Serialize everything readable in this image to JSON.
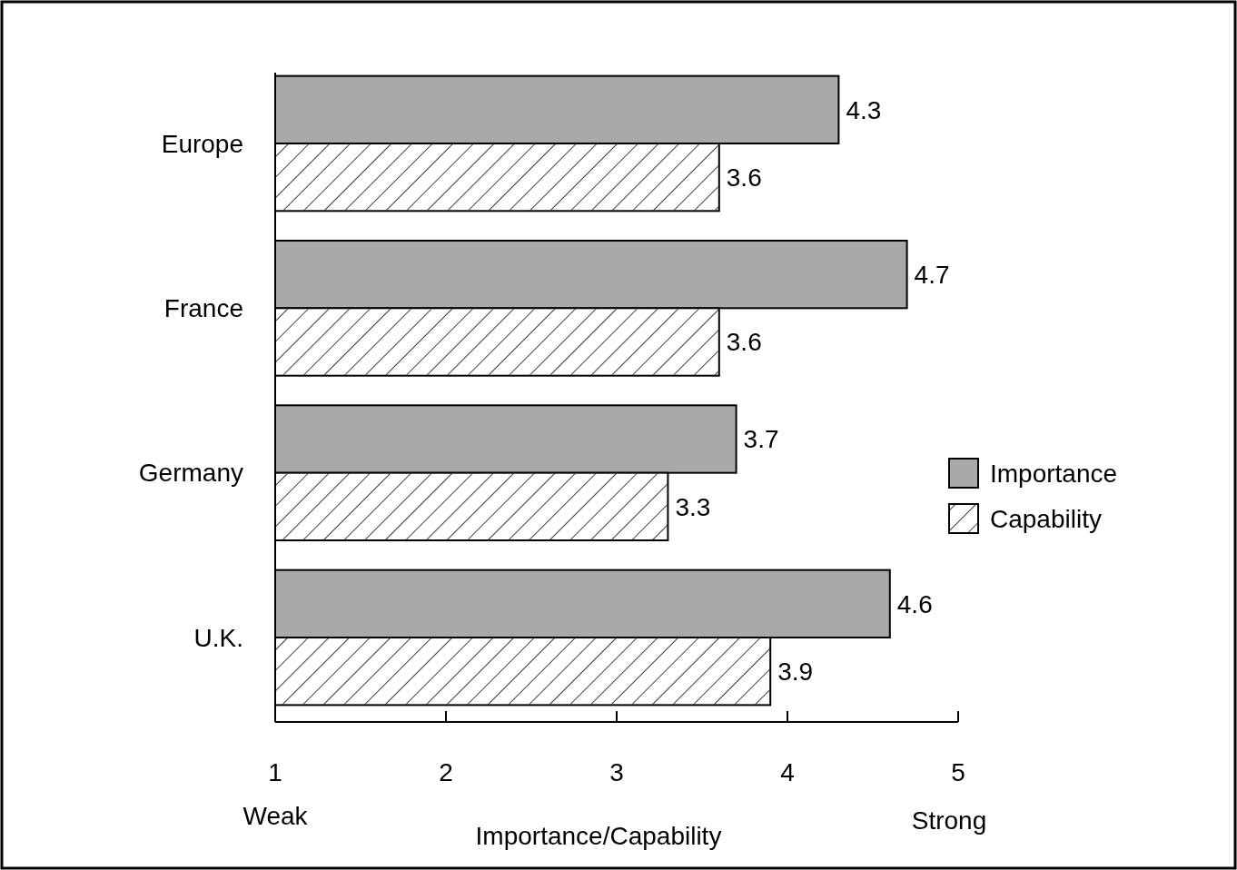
{
  "chart_data": {
    "type": "bar",
    "orientation": "horizontal",
    "categories": [
      "Europe",
      "France",
      "Germany",
      "U.K."
    ],
    "series": [
      {
        "name": "Importance",
        "color": "#a9a9a9",
        "values": [
          4.3,
          4.7,
          3.7,
          4.6
        ]
      },
      {
        "name": "Capability",
        "color": "#ffffff",
        "values": [
          3.6,
          3.6,
          3.3,
          3.9
        ]
      }
    ],
    "xlim": [
      1,
      5
    ],
    "xticks": [
      1,
      2,
      3,
      4,
      5
    ],
    "xlabel": "Importance/Capability",
    "annotations": [
      "Weak",
      "Strong"
    ],
    "data_labels": true,
    "legend": "right",
    "grid": false
  }
}
